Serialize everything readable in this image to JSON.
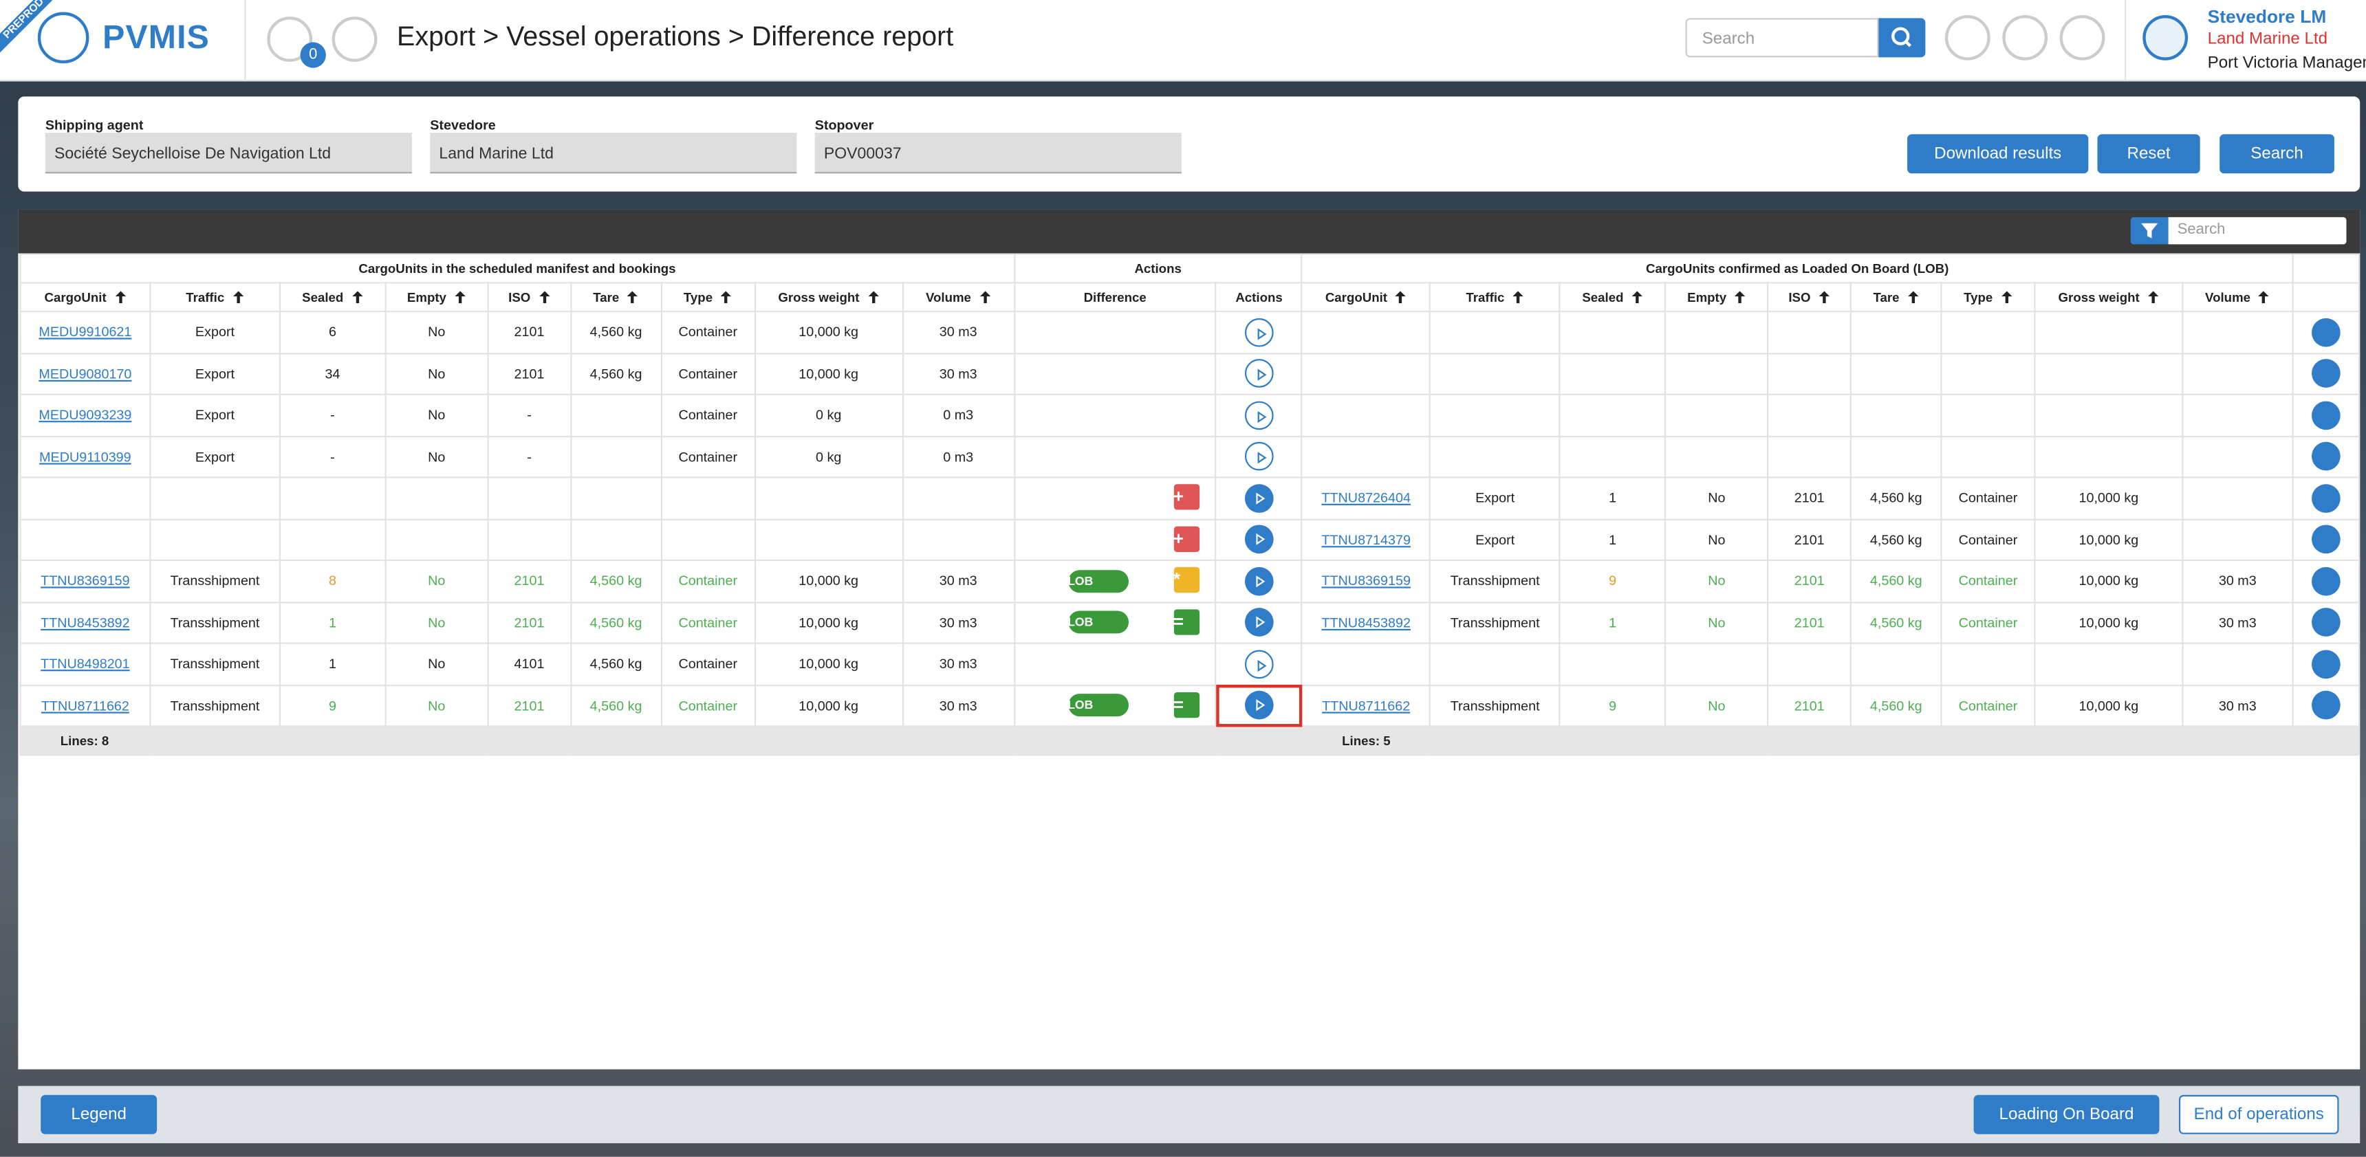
{
  "header": {
    "badge": "PREPROD",
    "logo": "PVMIS",
    "notifications": "0",
    "breadcrumb": "Export > Vessel operations > Difference report",
    "search_placeholder": "Search",
    "user": {
      "name": "Stevedore LM",
      "company": "Land Marine Ltd",
      "organization": "Port Victoria Managem"
    }
  },
  "filters": {
    "fields": [
      {
        "label": "Shipping agent",
        "value": "Société Seychelloise De Navigation Ltd"
      },
      {
        "label": "Stevedore",
        "value": "Land Marine Ltd"
      },
      {
        "label": "Stopover",
        "value": "POV00037"
      }
    ],
    "buttons": [
      "Download results",
      "Reset",
      "Search"
    ]
  },
  "table": {
    "search_placeholder": "Search",
    "groups": {
      "manifest": "CargoUnits in the scheduled manifest and bookings",
      "actions": "Actions",
      "lob": "CargoUnits confirmed as Loaded On Board (LOB)"
    },
    "columns": {
      "manifest": [
        "CargoUnit",
        "Traffic",
        "Sealed",
        "Empty",
        "ISO",
        "Tare",
        "Type",
        "Gross weight",
        "Volume"
      ],
      "difference": "Difference",
      "actions": "Actions",
      "lob": [
        "CargoUnit",
        "Traffic",
        "Sealed",
        "Empty",
        "ISO",
        "Tare",
        "Type",
        "Gross weight",
        "Volume"
      ]
    },
    "rows": [
      {
        "manifest": [
          "MEDU9910621",
          "Export",
          "6",
          "No",
          "2101",
          "4,560 kg",
          "Container",
          "10,000 kg",
          "30 m3"
        ],
        "badge": null,
        "difference": null,
        "lob": null
      },
      {
        "manifest": [
          "MEDU9080170",
          "Export",
          "34",
          "No",
          "2101",
          "4,560 kg",
          "Container",
          "10,000 kg",
          "30 m3"
        ],
        "badge": null,
        "difference": null,
        "lob": null
      },
      {
        "manifest": [
          "MEDU9093239",
          "Export",
          "-",
          "No",
          "-",
          null,
          "Container",
          "0 kg",
          "0 m3"
        ],
        "badge": null,
        "difference": null,
        "lob": null
      },
      {
        "manifest": [
          "MEDU9110399",
          "Export",
          "-",
          "No",
          "-",
          null,
          "Container",
          "0 kg",
          "0 m3"
        ],
        "badge": null,
        "difference": null,
        "lob": null
      },
      {
        "manifest": null,
        "badge": null,
        "difference": "+",
        "lob": [
          "TTNU8726404",
          "Export",
          "1",
          "No",
          "2101",
          "4,560 kg",
          "Container",
          "10,000 kg",
          null
        ]
      },
      {
        "manifest": null,
        "badge": null,
        "difference": "+",
        "lob": [
          "TTNU8714379",
          "Export",
          "1",
          "No",
          "2101",
          "4,560 kg",
          "Container",
          "10,000 kg",
          null
        ]
      },
      {
        "manifest": [
          "TTNU8369159",
          "Transshipment",
          "8",
          "No",
          "2101",
          "4,560 kg",
          "Container",
          "10,000 kg",
          "30 m3"
        ],
        "badge": "LOB",
        "difference": "*",
        "lob": [
          "TTNU8369159",
          "Transshipment",
          "9",
          "No",
          "2101",
          "4,560 kg",
          "Container",
          "10,000 kg",
          "30 m3"
        ]
      },
      {
        "manifest": [
          "TTNU8453892",
          "Transshipment",
          "1",
          "No",
          "2101",
          "4,560 kg",
          "Container",
          "10,000 kg",
          "30 m3"
        ],
        "badge": "LOB",
        "difference": "=",
        "lob": [
          "TTNU8453892",
          "Transshipment",
          "1",
          "No",
          "2101",
          "4,560 kg",
          "Container",
          "10,000 kg",
          "30 m3"
        ]
      },
      {
        "manifest": [
          "TTNU8498201",
          "Transshipment",
          "1",
          "No",
          "4101",
          "4,560 kg",
          "Container",
          "10,000 kg",
          "30 m3"
        ],
        "badge": null,
        "difference": null,
        "lob": null
      },
      {
        "manifest": [
          "TTNU8711662",
          "Transshipment",
          "9",
          "No",
          "2101",
          "4,560 kg",
          "Container",
          "10,000 kg",
          "30 m3"
        ],
        "badge": "LOB",
        "difference": "=",
        "lob": [
          "TTNU8711662",
          "Transshipment",
          "9",
          "No",
          "2101",
          "4,560 kg",
          "Container",
          "10,000 kg",
          "30 m3"
        ]
      }
    ],
    "footer": {
      "manifest": "Lines: 8",
      "lob": "Lines: 5"
    }
  },
  "bottom": {
    "legend": "Legend",
    "buttons": [
      "Loading On Board",
      "End of operations"
    ]
  }
}
